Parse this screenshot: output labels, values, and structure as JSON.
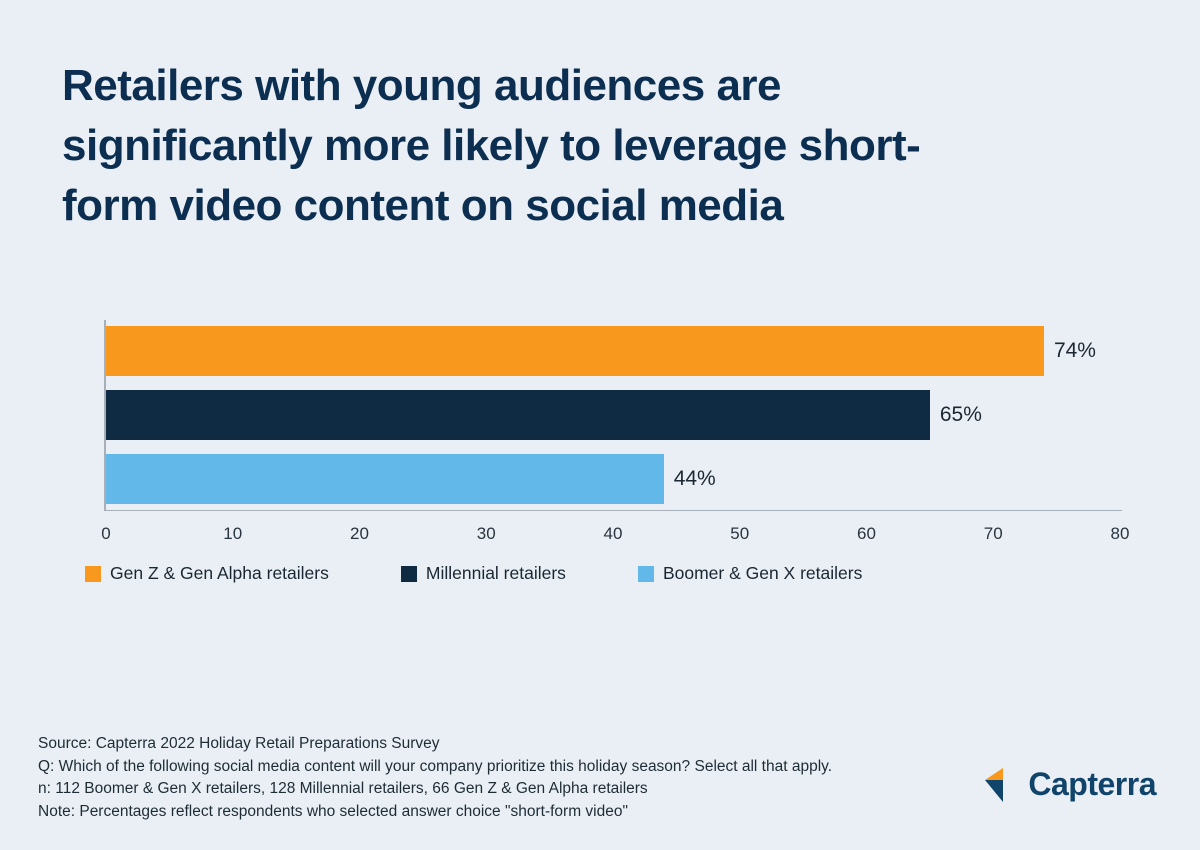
{
  "page": {
    "background_color": "#e9eff4"
  },
  "title": {
    "full": "Retailers with young audiences are significantly more likely to leverage short-form video content on social media",
    "lines": [
      "Retailers with young audiences are",
      "significantly more likely to leverage short-",
      "form video content on social media"
    ],
    "color": "#0c2e51"
  },
  "chart_data": {
    "type": "bar",
    "orientation": "horizontal",
    "categories": [
      "Gen Z & Gen Alpha retailers",
      "Millennial retailers",
      "Boomer & Gen X retailers"
    ],
    "values": [
      74,
      65,
      44
    ],
    "value_labels": [
      "74%",
      "65%",
      "44%"
    ],
    "colors": [
      "#f8981d",
      "#0f2b44",
      "#62b8e8"
    ],
    "xlim": [
      0,
      80
    ],
    "x_ticks": [
      0,
      10,
      20,
      30,
      40,
      50,
      60,
      70,
      80
    ],
    "grid": false,
    "legend_position": "bottom",
    "title": "Retailers with young audiences are significantly more likely to leverage short-form video content on social media",
    "xlabel": "",
    "ylabel": ""
  },
  "legend": {
    "items": [
      {
        "label": "Gen Z & Gen Alpha retailers",
        "color": "#f8981d"
      },
      {
        "label": "Millennial retailers",
        "color": "#0f2b44"
      },
      {
        "label": "Boomer & Gen X retailers",
        "color": "#62b8e8"
      }
    ]
  },
  "footer": {
    "lines": [
      "Source: Capterra 2022 Holiday Retail Preparations Survey",
      "Q: Which of the following social media content will your company prioritize this holiday season? Select all that apply.",
      "n: 112 Boomer & Gen X retailers, 128 Millennial retailers, 66 Gen Z & Gen Alpha retailers",
      "Note: Percentages reflect respondents who selected answer choice \"short-form video\""
    ]
  },
  "logo": {
    "text": "Capterra",
    "icon_orange": "#f8981d",
    "icon_blue": "#10446b"
  }
}
